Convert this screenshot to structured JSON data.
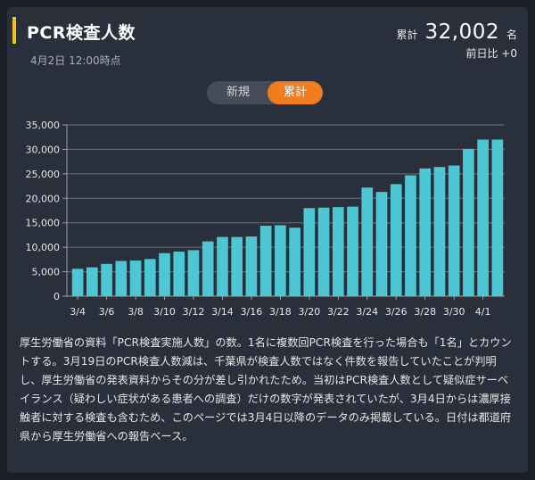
{
  "header": {
    "title": "PCR検査人数",
    "date": "4月2日 12:00時点",
    "summary_label": "累計",
    "summary_value": "32,002",
    "summary_unit": "名",
    "diff_text": "前日比 +0"
  },
  "toggle": {
    "new_label": "新規",
    "cumulative_label": "累計",
    "selected": "累計"
  },
  "colors": {
    "bar": "#4dc7d4",
    "accent": "#f07c1e",
    "title_marker": "#f0c020",
    "background": "#2a2f3c"
  },
  "chart_data": {
    "type": "bar",
    "categories": [
      "3/4",
      "3/5",
      "3/6",
      "3/7",
      "3/8",
      "3/9",
      "3/10",
      "3/11",
      "3/12",
      "3/13",
      "3/14",
      "3/15",
      "3/16",
      "3/17",
      "3/18",
      "3/19",
      "3/20",
      "3/21",
      "3/22",
      "3/23",
      "3/24",
      "3/25",
      "3/26",
      "3/27",
      "3/28",
      "3/29",
      "3/30",
      "3/31",
      "4/1",
      "4/2"
    ],
    "x_tick_labels": [
      "3/4",
      "3/6",
      "3/8",
      "3/10",
      "3/12",
      "3/14",
      "3/16",
      "3/18",
      "3/20",
      "3/22",
      "3/24",
      "3/26",
      "3/28",
      "3/30",
      "4/1"
    ],
    "values": [
      5600,
      5900,
      6600,
      7200,
      7300,
      7600,
      8800,
      9100,
      9400,
      11200,
      12100,
      12100,
      12200,
      14400,
      14500,
      14000,
      18000,
      18100,
      18200,
      18300,
      22200,
      21300,
      22900,
      24700,
      26100,
      26400,
      26700,
      30100,
      32002,
      32002
    ],
    "yticks": [
      0,
      5000,
      10000,
      15000,
      20000,
      25000,
      30000,
      35000
    ],
    "ytick_labels": [
      "0",
      "5,000",
      "10,000",
      "15,000",
      "20,000",
      "25,000",
      "30,000",
      "35,000"
    ],
    "ylim": [
      0,
      35000
    ],
    "grid": true
  },
  "note": "厚生労働省の資料「PCR検査実施人数」の数。1名に複数回PCR検査を行った場合も「1名」とカウントする。3月19日のPCR検査人数減は、千葉県が検査人数ではなく件数を報告していたことが判明し、厚生労働省の発表資料からその分が差し引かれたため。当初はPCR検査人数として疑似症サーベイランス（疑わしい症状がある患者への調査）だけの数字が発表されていたが、3月4日からは濃厚接触者に対する検査も含むため、このページでは3月4日以降のデータのみ掲載している。日付は都道府県から厚生労働省への報告ベース。"
}
